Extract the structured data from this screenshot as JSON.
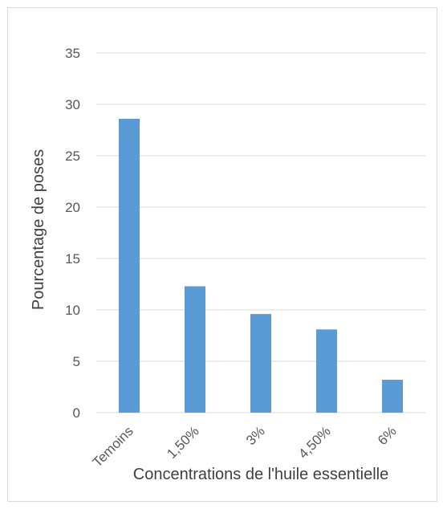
{
  "chart_data": {
    "type": "bar",
    "title": "",
    "xlabel": "Concentrations de l'huile essentielle",
    "ylabel": "Pourcentage de poses",
    "categories": [
      "Temoins",
      "1,50%",
      "3%",
      "4,50%",
      "6%"
    ],
    "values": [
      28.6,
      12.3,
      9.6,
      8.1,
      3.2
    ],
    "ylim": [
      0,
      35
    ],
    "yticks": [
      0,
      5,
      10,
      15,
      20,
      25,
      30,
      35
    ],
    "grid": true,
    "legend": "none",
    "colors": {
      "bar": "#5b9bd5",
      "grid": "#d9d9d9",
      "text": "#595959"
    }
  }
}
